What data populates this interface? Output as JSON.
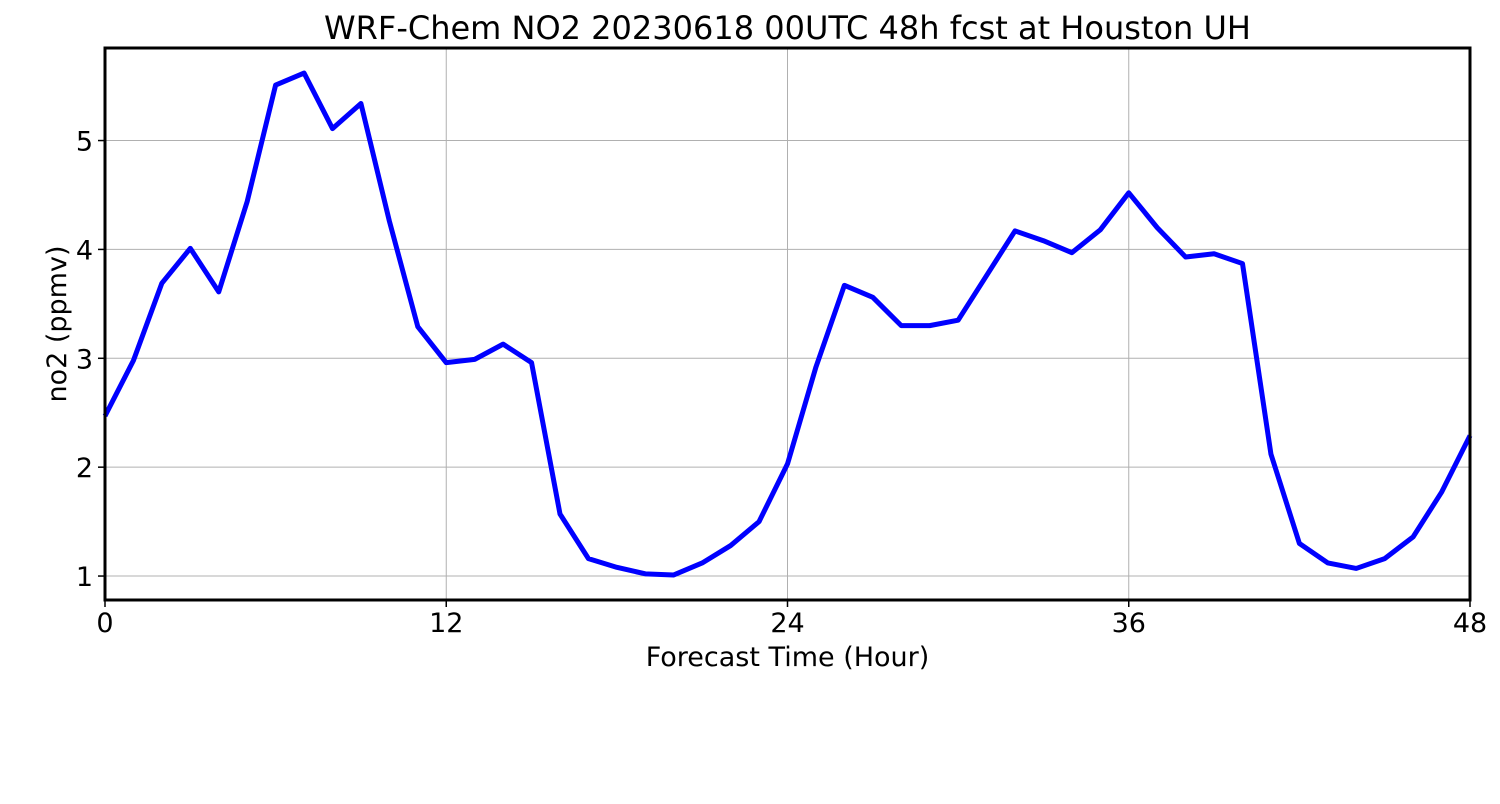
{
  "chart_data": {
    "type": "line",
    "title": "WRF-Chem NO2  20230618 00UTC 48h fcst at Houston UH",
    "xlabel": "Forecast Time (Hour)",
    "ylabel": "no2  (ppmv)",
    "xlim": [
      0,
      48
    ],
    "ylim": [
      0.78,
      5.85
    ],
    "xticks": [
      0,
      12,
      24,
      36,
      48
    ],
    "yticks": [
      1,
      2,
      3,
      4,
      5
    ],
    "grid": true,
    "legend": "none",
    "colors": {
      "line": "#0000ff"
    },
    "series": [
      {
        "x": [
          0,
          1,
          2,
          3,
          4,
          5,
          6,
          7,
          8,
          9,
          10,
          11,
          12,
          13,
          14,
          15,
          16,
          17,
          18,
          19,
          20,
          21,
          22,
          23,
          24,
          25,
          26,
          27,
          28,
          29,
          30,
          31,
          32,
          33,
          34,
          35,
          36,
          37,
          38,
          39,
          40,
          41,
          42,
          43,
          44,
          45,
          46,
          47,
          48
        ],
        "values": [
          2.47,
          2.98,
          3.69,
          4.01,
          3.61,
          4.44,
          5.51,
          5.62,
          5.11,
          5.34,
          4.26,
          3.29,
          2.96,
          2.99,
          3.13,
          2.96,
          1.57,
          1.16,
          1.08,
          1.02,
          1.01,
          1.12,
          1.28,
          1.5,
          2.03,
          2.92,
          3.67,
          3.56,
          3.3,
          3.3,
          3.35,
          3.76,
          4.17,
          4.08,
          3.97,
          4.18,
          4.52,
          4.2,
          3.93,
          3.96,
          3.87,
          2.12,
          1.3,
          1.12,
          1.07,
          1.16,
          1.36,
          1.77,
          2.29
        ]
      }
    ]
  }
}
